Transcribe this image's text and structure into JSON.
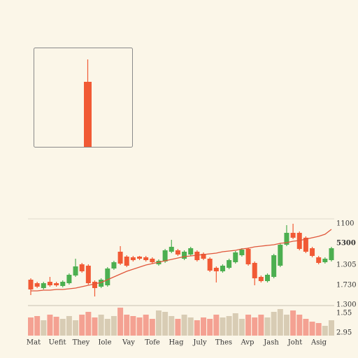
{
  "chart_data": {
    "type": "candlestick",
    "x_labels": [
      "Mat",
      "Uefit",
      "They",
      "Iole",
      "Vay",
      "Tofe",
      "Hag",
      "July",
      "Thes",
      "Avp",
      "Jash",
      "Joht",
      "Asig"
    ],
    "right_labels": [
      "1100",
      "5300",
      "1.305",
      "1.730",
      "1.300",
      "1.55",
      "2.95"
    ],
    "ylim": [
      0,
      116
    ],
    "y2lim": [
      0,
      45
    ],
    "up_color": "#4caf50",
    "down_color": "#f15a35",
    "line_color": "#e0563a",
    "volume_up_color": "#d8ccb4",
    "volume_down_color": "#f4a192",
    "open": [
      28,
      23,
      16,
      25,
      23,
      19,
      23,
      34,
      50,
      48,
      25,
      18,
      20,
      44,
      68,
      61,
      60,
      61,
      60,
      58,
      50,
      54,
      68,
      70,
      58,
      64,
      68,
      65,
      58,
      45,
      40,
      45,
      53,
      63,
      72,
      52,
      32,
      26,
      32,
      48,
      78,
      95,
      95,
      88,
      73,
      60,
      53,
      56
    ],
    "high": [
      30,
      25,
      25,
      32,
      25,
      27,
      37,
      58,
      52,
      50,
      27,
      30,
      46,
      55,
      76,
      63,
      62,
      62,
      62,
      60,
      57,
      72,
      85,
      72,
      70,
      75,
      70,
      67,
      60,
      47,
      50,
      58,
      69,
      73,
      74,
      54,
      34,
      37,
      65,
      80,
      106,
      108,
      97,
      90,
      75,
      62,
      60,
      75
    ],
    "low": [
      6,
      16,
      14,
      18,
      18,
      17,
      21,
      32,
      38,
      21,
      4,
      16,
      18,
      42,
      49,
      46,
      54,
      56,
      54,
      51,
      48,
      52,
      66,
      62,
      56,
      62,
      54,
      56,
      39,
      24,
      38,
      43,
      51,
      61,
      48,
      20,
      24,
      24,
      30,
      46,
      76,
      86,
      70,
      66,
      60,
      50,
      51,
      54
    ],
    "close": [
      14,
      18,
      23,
      20,
      20,
      25,
      35,
      47,
      40,
      23,
      16,
      28,
      44,
      53,
      51,
      48,
      56,
      58,
      56,
      53,
      55,
      70,
      75,
      64,
      68,
      73,
      56,
      58,
      41,
      40,
      48,
      56,
      67,
      71,
      50,
      30,
      26,
      35,
      63,
      78,
      95,
      88,
      72,
      68,
      62,
      52,
      58,
      73
    ],
    "average": [
      12,
      12,
      13,
      13,
      14,
      14,
      15,
      16,
      18,
      20,
      22,
      24,
      28,
      32,
      36,
      40,
      43,
      46,
      49,
      51,
      53,
      55,
      57,
      59,
      61,
      62,
      63,
      64,
      65,
      66,
      68,
      69,
      70,
      72,
      73,
      75,
      76,
      77,
      78,
      80,
      81,
      83,
      84,
      86,
      88,
      90,
      93,
      100
    ],
    "volume": [
      26,
      28,
      22,
      30,
      27,
      24,
      28,
      22,
      30,
      34,
      26,
      30,
      24,
      28,
      40,
      30,
      28,
      26,
      30,
      24,
      36,
      34,
      28,
      24,
      30,
      26,
      22,
      26,
      24,
      30,
      26,
      28,
      32,
      24,
      30,
      26,
      30,
      26,
      34,
      38,
      30,
      36,
      30,
      24,
      20,
      18,
      14,
      22
    ],
    "inset": {
      "ylim": [
        0,
        142
      ],
      "open": 93,
      "high": 125,
      "low": 0,
      "close": 0
    }
  }
}
